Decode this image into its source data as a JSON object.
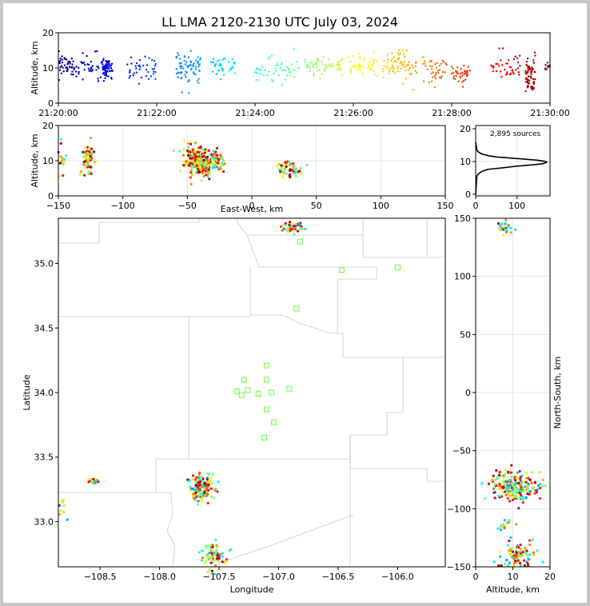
{
  "figure": {
    "title": "LL LMA 2120-2130 UTC July 03, 2024"
  },
  "chart_data": [
    {
      "type": "scatter",
      "panel": "time-altitude",
      "xlabel": "",
      "ylabel": "Altitude, km",
      "xlim": [
        "21:20:00",
        "21:30:00"
      ],
      "ylim": [
        0,
        20
      ],
      "xticks": [
        "21:20:00",
        "21:22:00",
        "21:24:00",
        "21:26:00",
        "21:28:00",
        "21:30:00"
      ],
      "yticks": [
        "0",
        "10",
        "20"
      ],
      "series_description": "sources colored by time (blue to red)",
      "clusters": [
        {
          "t_min": 0.0,
          "t_max": 0.3,
          "alt_center": 10.5,
          "alt_spread": 1.5,
          "n": 40
        },
        {
          "t_min": 0.3,
          "t_max": 1.0,
          "alt_center": 10.0,
          "alt_spread": 2.0,
          "n": 50
        },
        {
          "t_min": 0.9,
          "t_max": 1.1,
          "alt_center": 10.0,
          "alt_spread": 1.5,
          "n": 60
        },
        {
          "t_min": 1.4,
          "t_max": 2.0,
          "alt_center": 9.5,
          "alt_spread": 2.0,
          "n": 40
        },
        {
          "t_min": 2.4,
          "t_max": 2.9,
          "alt_center": 10.0,
          "alt_spread": 2.5,
          "n": 70
        },
        {
          "t_min": 3.1,
          "t_max": 3.6,
          "alt_center": 10.5,
          "alt_spread": 1.5,
          "n": 40
        },
        {
          "t_min": 4.0,
          "t_max": 4.9,
          "alt_center": 10.0,
          "alt_spread": 2.0,
          "n": 50
        },
        {
          "t_min": 5.0,
          "t_max": 5.8,
          "alt_center": 10.5,
          "alt_spread": 1.5,
          "n": 60
        },
        {
          "t_min": 5.9,
          "t_max": 6.5,
          "alt_center": 10.5,
          "alt_spread": 1.5,
          "n": 45
        },
        {
          "t_min": 6.6,
          "t_max": 7.3,
          "alt_center": 10.5,
          "alt_spread": 2.0,
          "n": 70
        },
        {
          "t_min": 7.4,
          "t_max": 7.9,
          "alt_center": 9.0,
          "alt_spread": 2.0,
          "n": 40
        },
        {
          "t_min": 8.0,
          "t_max": 8.4,
          "alt_center": 8.5,
          "alt_spread": 1.5,
          "n": 40
        },
        {
          "t_min": 8.8,
          "t_max": 9.4,
          "alt_center": 10.5,
          "alt_spread": 2.0,
          "n": 40
        },
        {
          "t_min": 9.5,
          "t_max": 9.7,
          "alt_center": 8.0,
          "alt_spread": 2.5,
          "n": 60
        },
        {
          "t_min": 9.9,
          "t_max": 10.0,
          "alt_center": 10.5,
          "alt_spread": 1.0,
          "n": 10
        }
      ]
    },
    {
      "type": "scatter",
      "panel": "east-west-altitude",
      "xlabel": "East-West, km",
      "ylabel": "Altitude, km",
      "xlim": [
        -150,
        150
      ],
      "ylim": [
        0,
        20
      ],
      "xticks": [
        "−150",
        "−100",
        "−50",
        "0",
        "50",
        "100",
        "150"
      ],
      "yticks": [
        "0",
        "10",
        "20"
      ],
      "grid": true,
      "clusters": [
        {
          "x": -147,
          "alt": 11.0,
          "sx": 2,
          "sa": 2.5,
          "n": 15
        },
        {
          "x": -127,
          "alt": 10.0,
          "sx": 2.5,
          "sa": 2.5,
          "n": 60
        },
        {
          "x": -45,
          "alt": 10.0,
          "sx": 5,
          "sa": 2.5,
          "n": 120
        },
        {
          "x": -37,
          "alt": 9.0,
          "sx": 4,
          "sa": 1.8,
          "n": 130
        },
        {
          "x": -27,
          "alt": 10.5,
          "sx": 3,
          "sa": 1.5,
          "n": 50
        },
        {
          "x": 25,
          "alt": 8.0,
          "sx": 2.5,
          "sa": 1.0,
          "n": 30
        },
        {
          "x": 33,
          "alt": 7.0,
          "sx": 3,
          "sa": 1.0,
          "n": 25
        }
      ]
    },
    {
      "type": "line",
      "panel": "altitude-histogram",
      "annotation": "2,895 sources",
      "xlim": [
        0,
        180
      ],
      "ylim": [
        0,
        20
      ],
      "xticks": [
        "0",
        "100"
      ],
      "yticks": [
        "0",
        "10",
        "20"
      ],
      "x": [
        0,
        1,
        2,
        3,
        5,
        10,
        15,
        22,
        30,
        45,
        60,
        80,
        100,
        120,
        140,
        160,
        170,
        172,
        170,
        160,
        150,
        130,
        110,
        90,
        70,
        50,
        30,
        15,
        8,
        4,
        3,
        2,
        2,
        1,
        0
      ],
      "y": [
        0,
        2,
        4,
        5.5,
        6.0,
        6.5,
        7.0,
        7.3,
        7.6,
        7.8,
        8.0,
        8.3,
        8.6,
        8.8,
        9.0,
        9.3,
        9.6,
        9.8,
        10.0,
        10.2,
        10.4,
        10.6,
        10.8,
        11.0,
        11.2,
        11.4,
        11.8,
        12.3,
        12.8,
        13.2,
        13.6,
        14.0,
        14.5,
        15.0,
        16.0
      ]
    },
    {
      "type": "scatter",
      "panel": "plan-view-map",
      "xlabel": "Longitude",
      "ylabel": "Latitude",
      "xlim": [
        -108.85,
        -105.6
      ],
      "ylim": [
        32.65,
        35.35
      ],
      "xticks": [
        "−108.5",
        "−108.0",
        "−107.5",
        "−107.0",
        "−106.5",
        "−106.0"
      ],
      "yticks": [
        "33.0",
        "33.5",
        "34.0",
        "34.5",
        "35.0"
      ],
      "stations": [
        [
          -106.82,
          35.17
        ],
        [
          -106.47,
          34.95
        ],
        [
          -106.0,
          34.97
        ],
        [
          -106.85,
          34.65
        ],
        [
          -107.1,
          34.21
        ],
        [
          -107.29,
          34.1
        ],
        [
          -107.1,
          34.1
        ],
        [
          -107.35,
          34.01
        ],
        [
          -107.26,
          34.02
        ],
        [
          -107.31,
          33.98
        ],
        [
          -107.17,
          33.99
        ],
        [
          -107.06,
          34.0
        ],
        [
          -106.91,
          34.03
        ],
        [
          -107.1,
          33.87
        ],
        [
          -107.04,
          33.77
        ],
        [
          -107.12,
          33.65
        ]
      ],
      "clusters": [
        {
          "lon": -106.87,
          "lat": 35.28,
          "slon": 0.05,
          "slat": 0.02,
          "n": 40
        },
        {
          "lon": -108.55,
          "lat": 33.31,
          "slon": 0.02,
          "slat": 0.01,
          "n": 25
        },
        {
          "lon": -107.64,
          "lat": 33.26,
          "slon": 0.05,
          "slat": 0.05,
          "n": 160
        },
        {
          "lon": -107.55,
          "lat": 32.74,
          "slon": 0.05,
          "slat": 0.05,
          "n": 80
        },
        {
          "lon": -108.8,
          "lat": 33.1,
          "slon": 0.03,
          "slat": 0.05,
          "n": 10
        }
      ]
    },
    {
      "type": "scatter",
      "panel": "altitude-north-south",
      "xlabel": "Altitude, km",
      "ylabel": "North-South, km",
      "xlim": [
        0,
        20
      ],
      "ylim": [
        -150,
        150
      ],
      "xticks": [
        "0",
        "10",
        "20"
      ],
      "yticks": [
        "−150",
        "−100",
        "−50",
        "0",
        "50",
        "100",
        "150"
      ],
      "grid": true,
      "clusters": [
        {
          "alt": 8.0,
          "ns": 142,
          "sa": 1.0,
          "sn": 2.5,
          "n": 30
        },
        {
          "alt": 10.0,
          "ns": -80,
          "sa": 3.0,
          "sn": 6,
          "n": 200
        },
        {
          "alt": 11.5,
          "ns": -140,
          "sa": 2.5,
          "sn": 6,
          "n": 80
        },
        {
          "alt": 8.0,
          "ns": -115,
          "sa": 1.5,
          "sn": 3,
          "n": 15
        }
      ]
    }
  ]
}
